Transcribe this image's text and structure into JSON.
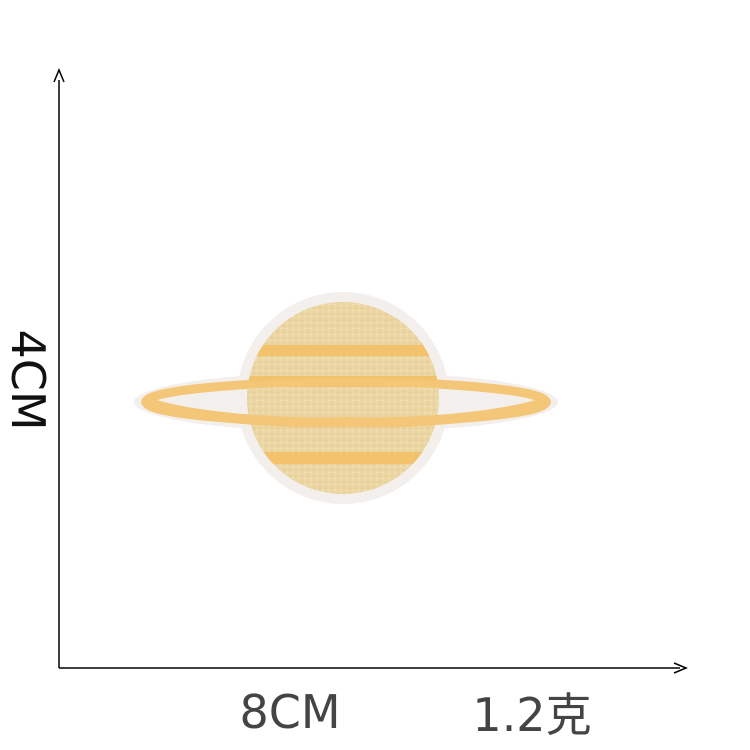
{
  "dimensions": {
    "height_label": "4CM",
    "width_label": "8CM",
    "weight_label": "1.2克"
  },
  "product": {
    "icon": "saturn-planet-embroidered-patch",
    "colors": {
      "fill": "#ecd7a4",
      "stripe": "#f2c36c",
      "ring": "#f4c678",
      "border": "#f3efec",
      "axis": "#000000"
    }
  }
}
